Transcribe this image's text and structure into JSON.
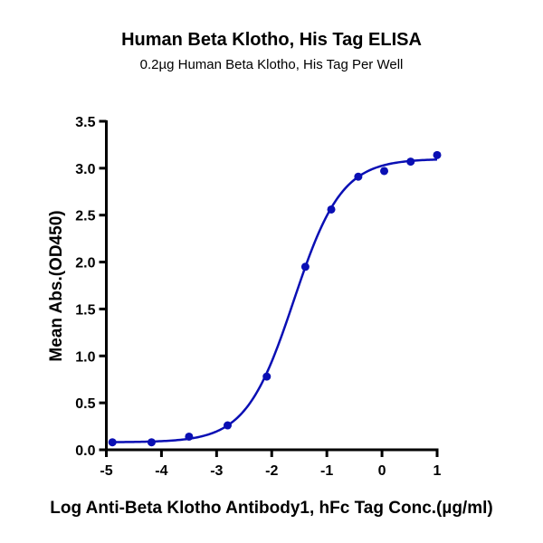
{
  "chart_data": {
    "type": "scatter",
    "title": "Human Beta Klotho, His Tag ELISA",
    "subtitle": "0.2µg Human Beta Klotho, His Tag Per Well",
    "xlabel": "Log Anti-Beta Klotho Antibody1, hFc Tag Conc.(µg/ml)",
    "ylabel": "Mean Abs.(OD450)",
    "xlim": [
      -5,
      1
    ],
    "ylim": [
      0,
      3.5
    ],
    "xticks": [
      "-5",
      "-4",
      "-3",
      "-2",
      "-1",
      "0",
      "1"
    ],
    "yticks": [
      "0.0",
      "0.5",
      "1.0",
      "1.5",
      "2.0",
      "2.5",
      "3.0",
      "3.5"
    ],
    "grid": false,
    "color": "#0a0fb4",
    "points": {
      "x": [
        -4.89,
        -4.18,
        -3.5,
        -2.8,
        -2.09,
        -1.39,
        -0.92,
        -0.43,
        0.04,
        0.52,
        1.0
      ],
      "y": [
        0.08,
        0.08,
        0.14,
        0.26,
        0.78,
        1.95,
        2.56,
        2.91,
        2.97,
        3.07,
        3.14
      ]
    },
    "fit": {
      "model": "4PL",
      "bottom": 0.08,
      "top": 3.1,
      "logEC50": -1.6,
      "hill": 1.0
    }
  }
}
